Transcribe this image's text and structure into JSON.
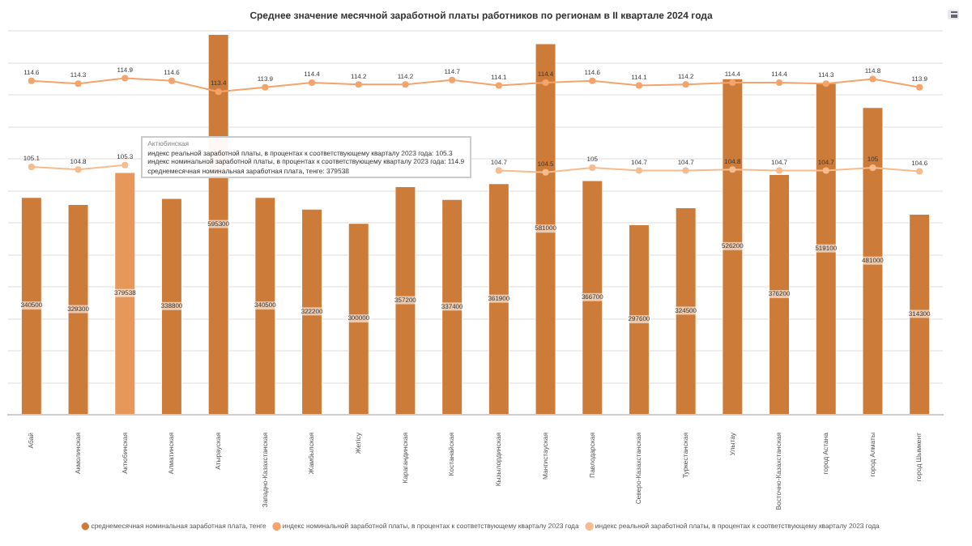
{
  "chart_data": {
    "type": "bar",
    "title": "Среднее значение месячной заработной платы работников по регионам в II квартале 2024 года",
    "categories": [
      "Абай",
      "Акмолинская",
      "Актюбинская",
      "Алматинская",
      "Атырауская",
      "Западно-Казахстанская",
      "Жамбылская",
      "Жетісу",
      "Карагандинская",
      "Костанайская",
      "Кызылординская",
      "Мангистауская",
      "Павлодарская",
      "Северо-Казахстанская",
      "Туркестанская",
      "Улытау",
      "Восточно-Казахстанская",
      "город Астана",
      "город Алматы",
      "город Шымкент"
    ],
    "series": [
      {
        "name": "среднемесячная номинальная заработная плата, тенге",
        "color": "#cd7b38",
        "colors": [
          "#cd7b38",
          "#cd7b38",
          "#e8975a",
          "#cd7b38",
          "#cd7b38",
          "#cd7b38",
          "#cd7b38",
          "#cd7b38",
          "#cd7b38",
          "#cd7b38",
          "#cd7b38",
          "#cd7b38",
          "#cd7b38",
          "#cd7b38",
          "#cd7b38",
          "#cd7b38",
          "#cd7b38",
          "#cd7b38",
          "#cd7b38",
          "#cd7b38"
        ],
        "values": [
          340500,
          329300,
          379538,
          338800,
          595300,
          340500,
          322200,
          300000,
          357200,
          337400,
          361900,
          581000,
          366700,
          297600,
          324500,
          526200,
          376200,
          519100,
          481000,
          314300
        ]
      },
      {
        "name": "индекс номинальной заработной платы, в процентах к соответствующему кварталу 2023 года",
        "type": "line",
        "axis": "y2",
        "color": "#f4a46a",
        "values": [
          114.6,
          114.3,
          114.9,
          114.6,
          113.4,
          113.9,
          114.4,
          114.2,
          114.2,
          114.7,
          114.1,
          114.4,
          114.6,
          114.1,
          114.2,
          114.4,
          114.4,
          114.3,
          114.8,
          113.9
        ]
      },
      {
        "name": "индекс реальной заработной платы, в процентах к соответствующему кварталу 2023 года",
        "type": "line",
        "axis": "y2",
        "color": "#f7bc8e",
        "values": [
          105.1,
          104.8,
          105.3,
          null,
          null,
          null,
          null,
          null,
          null,
          null,
          104.7,
          104.5,
          105.0,
          104.7,
          104.7,
          104.8,
          104.7,
          104.7,
          105.0,
          104.6
        ]
      }
    ],
    "ylim": [
      0,
      600000
    ],
    "yticks": [
      0,
      50000,
      100000,
      150000,
      200000,
      250000,
      300000,
      350000,
      400000,
      450000,
      500000,
      550000,
      600000
    ],
    "y2lim": [
      77.7,
      120.1
    ],
    "tick_labels": "x",
    "grid": "y",
    "legend": "bottom",
    "marker": "circle",
    "data_labels": true,
    "annotations": [
      "Актюбинская",
      "индекс реальной заработной платы, в процентах к соответствующему кварталу 2023 года: 105.3",
      "индекс номинальной заработной платы, в процентах к соответствующему кварталу 2023 года: 114.9",
      "среднемесячная номинальная заработная плата, тенге: 379538"
    ]
  }
}
